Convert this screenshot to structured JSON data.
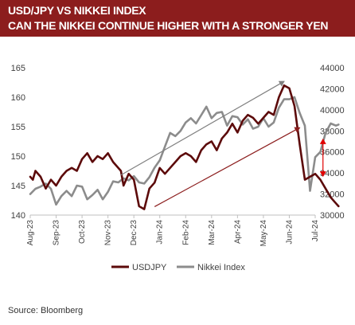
{
  "header": {
    "line1": "USD/JPY VS NIKKEI INDEX",
    "line2": "CAN THE NIKKEI CONTINUE HIGHER WITH A STRONGER YEN"
  },
  "footer": {
    "source": "Source:  Bloomberg"
  },
  "chart_data": {
    "type": "line",
    "grid": false,
    "legend_position": "bottom",
    "x_tick_labels": [
      "Aug-23",
      "Sep-23",
      "Oct-23",
      "Nov-23",
      "Dec-23",
      "Jan-24",
      "Feb-24",
      "Mar-24",
      "Apr-24",
      "May-24",
      "Jun-24",
      "Jul-24"
    ],
    "y_left": {
      "ticks": [
        140,
        145,
        150,
        155,
        160,
        165
      ],
      "lim": [
        140,
        165
      ]
    },
    "y_right": {
      "ticks": [
        30000,
        32000,
        34000,
        36000,
        38000,
        40000,
        42000,
        44000
      ],
      "lim": [
        30000,
        44000
      ]
    },
    "series": [
      {
        "name": "USDJPY",
        "axis": "left",
        "color": "#5c0a0a",
        "x": [
          0,
          0.1,
          0.2,
          0.4,
          0.6,
          0.8,
          1,
          1.2,
          1.4,
          1.6,
          1.8,
          2,
          2.2,
          2.4,
          2.6,
          2.8,
          3,
          3.2,
          3.3,
          3.5,
          3.6,
          3.8,
          4,
          4.2,
          4.4,
          4.6,
          4.8,
          5,
          5.2,
          5.4,
          5.6,
          5.8,
          6,
          6.2,
          6.4,
          6.6,
          6.8,
          7,
          7.2,
          7.4,
          7.6,
          7.8,
          8,
          8.2,
          8.4,
          8.6,
          8.8,
          9,
          9.2,
          9.4,
          9.6,
          9.8,
          10,
          10.2,
          10.4,
          10.6,
          10.8,
          11,
          11.2,
          11.4,
          11.6,
          11.8,
          11.9
        ],
        "values": [
          146.5,
          146,
          147.5,
          146.5,
          144.5,
          146,
          145,
          146.5,
          147.5,
          148,
          147.5,
          149.5,
          150.5,
          149,
          150,
          149.5,
          150.5,
          149,
          148.5,
          147.5,
          145,
          147,
          146,
          141.5,
          141,
          144.5,
          145.5,
          148,
          147,
          148,
          149,
          150,
          150.5,
          150,
          149,
          151,
          152,
          152.5,
          151,
          153,
          154,
          155.5,
          154,
          156,
          157,
          156.5,
          155.5,
          156.5,
          157.5,
          157,
          160,
          162,
          161.5,
          158.5,
          152,
          146,
          146.5,
          147,
          146,
          144.5,
          143,
          142,
          141.5
        ]
      },
      {
        "name": "Nikkei Index",
        "axis": "right",
        "color": "#8c8c8c",
        "x": [
          0,
          0.2,
          0.4,
          0.6,
          0.8,
          1,
          1.2,
          1.4,
          1.6,
          1.8,
          2,
          2.2,
          2.4,
          2.6,
          2.8,
          3,
          3.2,
          3.4,
          3.6,
          3.8,
          4,
          4.2,
          4.4,
          4.6,
          4.8,
          5,
          5.2,
          5.4,
          5.6,
          5.8,
          6,
          6.2,
          6.4,
          6.6,
          6.8,
          7,
          7.2,
          7.4,
          7.6,
          7.8,
          8,
          8.2,
          8.4,
          8.6,
          8.8,
          9,
          9.2,
          9.4,
          9.6,
          9.8,
          10,
          10.2,
          10.4,
          10.6,
          10.8,
          11,
          11.2,
          11.4,
          11.6,
          11.8,
          11.9
        ],
        "values": [
          32000,
          32500,
          32700,
          33000,
          32500,
          31000,
          31800,
          32300,
          31800,
          32800,
          32700,
          31500,
          31900,
          32400,
          31500,
          32200,
          33200,
          33100,
          33500,
          33300,
          33700,
          33100,
          33000,
          33600,
          34500,
          35200,
          36500,
          37800,
          37500,
          38000,
          38800,
          39200,
          38700,
          39500,
          40300,
          39200,
          39700,
          39800,
          38500,
          39400,
          39300,
          38600,
          39100,
          38200,
          38400,
          39200,
          38400,
          38800,
          40200,
          41000,
          41000,
          41200,
          39700,
          38500,
          32300,
          35500,
          36000,
          37800,
          38700,
          38500,
          38600
        ]
      }
    ],
    "annotations": [
      {
        "type": "arrow",
        "color": "#7f7f7f",
        "from": {
          "x": 3.5,
          "y": 33800
        },
        "to": {
          "x": 9.8,
          "y": 42700
        },
        "axis": "right"
      },
      {
        "type": "arrow",
        "color": "#8c1d1d",
        "from": {
          "x": 4.8,
          "y": 30800
        },
        "to": {
          "x": 10.4,
          "y": 38300
        },
        "axis": "right"
      },
      {
        "type": "double-arrow",
        "color": "#e00000",
        "from": {
          "x": 11.3,
          "y": 33700
        },
        "to": {
          "x": 11.3,
          "y": 37200
        },
        "axis": "right"
      }
    ]
  }
}
